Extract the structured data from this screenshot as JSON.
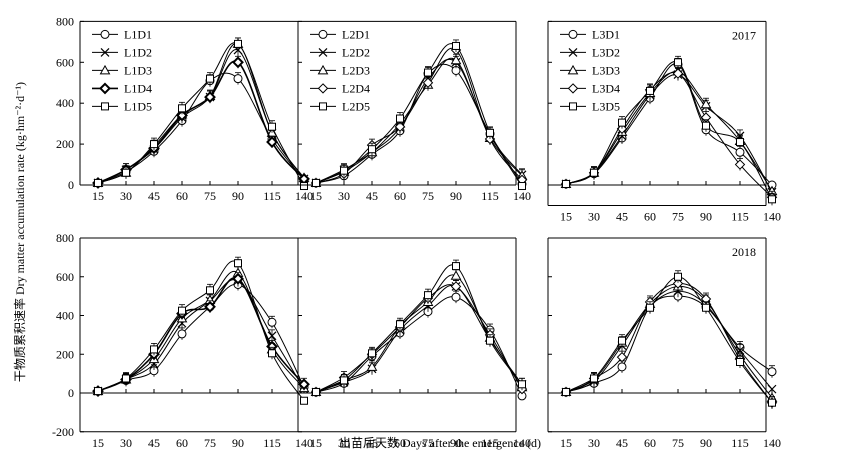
{
  "figure": {
    "ylabel": "干物质累积速率 Dry matter accumulation rate (kg·hm⁻²·d⁻¹)",
    "xlabel": "出苗后天数 Days after the emergence (d)"
  },
  "chart_data": [
    {
      "type": "line",
      "panel": "top-left",
      "year_label": "",
      "categories": [
        "15",
        "30",
        "45",
        "60",
        "75",
        "90",
        "115",
        "140"
      ],
      "ylim": [
        0,
        800
      ],
      "yticks": [
        0,
        200,
        400,
        600,
        800
      ],
      "legend": "top-left",
      "series": [
        {
          "name": "L1D1",
          "marker": "circle",
          "values": [
            10,
            65,
            165,
            315,
            510,
            520,
            225,
            25
          ]
        },
        {
          "name": "L1D2",
          "marker": "x",
          "values": [
            10,
            75,
            175,
            330,
            430,
            660,
            255,
            30
          ]
        },
        {
          "name": "L1D3",
          "marker": "triangle",
          "values": [
            10,
            60,
            190,
            345,
            435,
            690,
            255,
            35
          ]
        },
        {
          "name": "L1D4",
          "marker": "diamond-bold",
          "values": [
            10,
            75,
            180,
            340,
            430,
            600,
            210,
            30
          ]
        },
        {
          "name": "L1D5",
          "marker": "square",
          "values": [
            10,
            60,
            200,
            375,
            520,
            690,
            285,
            -5
          ]
        }
      ]
    },
    {
      "type": "line",
      "panel": "top-center",
      "year_label": "",
      "categories": [
        "15",
        "30",
        "45",
        "60",
        "75",
        "90",
        "115",
        "140"
      ],
      "ylim": [
        0,
        800
      ],
      "yticks": [
        0,
        200,
        400,
        600,
        800
      ],
      "legend": "top-left",
      "series": [
        {
          "name": "L2D1",
          "marker": "circle",
          "values": [
            10,
            45,
            150,
            265,
            545,
            560,
            250,
            5
          ]
        },
        {
          "name": "L2D2",
          "marker": "x",
          "values": [
            10,
            75,
            160,
            280,
            520,
            600,
            240,
            50
          ]
        },
        {
          "name": "L2D3",
          "marker": "triangle",
          "values": [
            10,
            65,
            160,
            300,
            490,
            610,
            230,
            45
          ]
        },
        {
          "name": "L2D4",
          "marker": "diamond",
          "values": [
            10,
            55,
            195,
            285,
            500,
            660,
            225,
            25
          ]
        },
        {
          "name": "L2D5",
          "marker": "square",
          "values": [
            10,
            70,
            175,
            325,
            550,
            680,
            255,
            -5
          ]
        }
      ]
    },
    {
      "type": "line",
      "panel": "top-right",
      "year_label": "2017",
      "categories": [
        "15",
        "30",
        "45",
        "60",
        "75",
        "90",
        "115",
        "140"
      ],
      "ylim": [
        -100,
        800
      ],
      "yticks": [
        0,
        200,
        400,
        600,
        800
      ],
      "legend": "top-left",
      "series": [
        {
          "name": "L3D1",
          "marker": "circle",
          "values": [
            5,
            55,
            230,
            425,
            590,
            270,
            160,
            0
          ]
        },
        {
          "name": "L3D2",
          "marker": "x",
          "values": [
            5,
            60,
            240,
            440,
            540,
            385,
            240,
            -35
          ]
        },
        {
          "name": "L3D3",
          "marker": "triangle",
          "values": [
            5,
            60,
            260,
            450,
            555,
            395,
            215,
            -30
          ]
        },
        {
          "name": "L3D4",
          "marker": "diamond",
          "values": [
            5,
            60,
            275,
            465,
            545,
            330,
            100,
            -60
          ]
        },
        {
          "name": "L3D5",
          "marker": "square",
          "values": [
            5,
            60,
            305,
            460,
            600,
            290,
            210,
            -70
          ]
        }
      ]
    },
    {
      "type": "line",
      "panel": "bottom-left",
      "year_label": "",
      "categories": [
        "15",
        "30",
        "45",
        "60",
        "75",
        "90",
        "115",
        "140"
      ],
      "ylim": [
        -200,
        800
      ],
      "yticks": [
        -200,
        0,
        200,
        400,
        600,
        800
      ],
      "legend": "none",
      "series": [
        {
          "name": "L1D1",
          "marker": "circle",
          "values": [
            10,
            65,
            115,
            305,
            445,
            560,
            365,
            30
          ]
        },
        {
          "name": "L1D2",
          "marker": "x",
          "values": [
            10,
            70,
            150,
            360,
            475,
            580,
            295,
            20
          ]
        },
        {
          "name": "L1D3",
          "marker": "triangle",
          "values": [
            10,
            70,
            175,
            385,
            480,
            620,
            225,
            25
          ]
        },
        {
          "name": "L1D4",
          "marker": "diamond-bold",
          "values": [
            10,
            70,
            200,
            410,
            445,
            590,
            240,
            45
          ]
        },
        {
          "name": "L1D5",
          "marker": "square",
          "values": [
            10,
            75,
            225,
            425,
            530,
            670,
            205,
            -40
          ]
        }
      ]
    },
    {
      "type": "line",
      "panel": "bottom-center",
      "year_label": "",
      "categories": [
        "15",
        "30",
        "45",
        "60",
        "75",
        "90",
        "115",
        "140"
      ],
      "ylim": [
        -200,
        800
      ],
      "yticks": [
        -200,
        0,
        200,
        400,
        600,
        800
      ],
      "legend": "none",
      "series": [
        {
          "name": "L2D1",
          "marker": "circle",
          "values": [
            5,
            50,
            190,
            310,
            420,
            495,
            325,
            -15
          ]
        },
        {
          "name": "L2D2",
          "marker": "x",
          "values": [
            5,
            55,
            125,
            325,
            450,
            550,
            275,
            45
          ]
        },
        {
          "name": "L2D3",
          "marker": "triangle",
          "values": [
            5,
            65,
            135,
            345,
            470,
            605,
            285,
            30
          ]
        },
        {
          "name": "L2D4",
          "marker": "diamond",
          "values": [
            5,
            80,
            200,
            340,
            490,
            550,
            300,
            20
          ]
        },
        {
          "name": "L2D5",
          "marker": "square",
          "values": [
            5,
            65,
            205,
            355,
            505,
            655,
            270,
            45
          ]
        }
      ]
    },
    {
      "type": "line",
      "panel": "bottom-right",
      "year_label": "2018",
      "categories": [
        "15",
        "30",
        "45",
        "60",
        "75",
        "90",
        "115",
        "140"
      ],
      "ylim": [
        -200,
        800
      ],
      "yticks": [
        -200,
        0,
        200,
        400,
        600,
        800
      ],
      "legend": "none",
      "series": [
        {
          "name": "L3D1",
          "marker": "circle",
          "values": [
            5,
            50,
            135,
            445,
            500,
            445,
            235,
            110
          ]
        },
        {
          "name": "L3D2",
          "marker": "x",
          "values": [
            5,
            60,
            245,
            450,
            525,
            455,
            220,
            20
          ]
        },
        {
          "name": "L3D3",
          "marker": "triangle",
          "values": [
            5,
            70,
            260,
            460,
            550,
            475,
            195,
            -25
          ]
        },
        {
          "name": "L3D4",
          "marker": "diamond",
          "values": [
            5,
            75,
            185,
            470,
            565,
            485,
            175,
            -50
          ]
        },
        {
          "name": "L3D5",
          "marker": "square",
          "values": [
            5,
            75,
            270,
            440,
            600,
            440,
            160,
            -50
          ]
        }
      ]
    }
  ]
}
